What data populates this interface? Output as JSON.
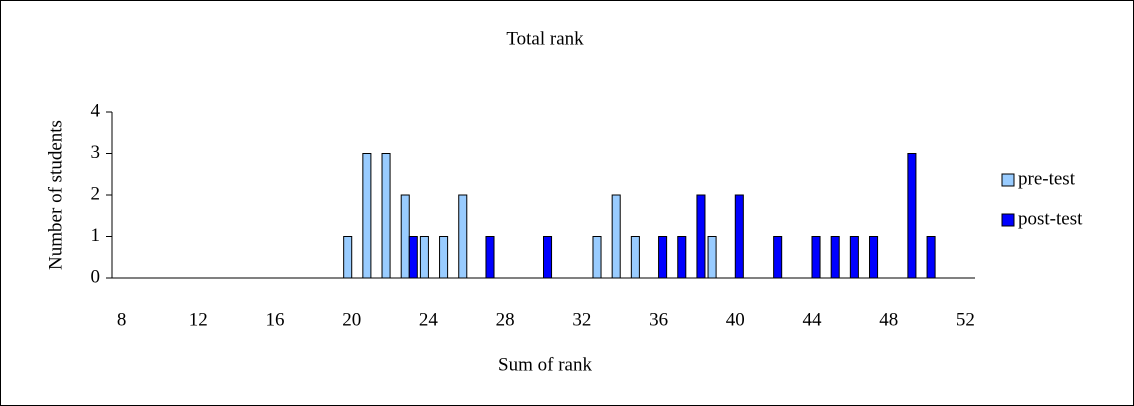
{
  "chart_data": {
    "type": "bar",
    "title": "Total rank",
    "xlabel": "Sum of rank",
    "ylabel": "Number of students",
    "xlim": [
      7.5,
      52.5
    ],
    "xticks": [
      8,
      12,
      16,
      20,
      24,
      28,
      32,
      36,
      40,
      44,
      48,
      52
    ],
    "ylim": [
      0,
      4
    ],
    "yticks": [
      0,
      1,
      2,
      3,
      4
    ],
    "grid": false,
    "legend": "right",
    "series": [
      {
        "name": "pre-test",
        "color": "#99ccff",
        "x": [
          20,
          21,
          22,
          23,
          24,
          25,
          26,
          33,
          34,
          35,
          39
        ],
        "values": [
          1,
          3,
          3,
          2,
          1,
          1,
          2,
          1,
          2,
          1,
          1
        ]
      },
      {
        "name": "post-test",
        "color": "#0000ff",
        "x": [
          23,
          27,
          30,
          36,
          37,
          38,
          40,
          42,
          44,
          45,
          46,
          47,
          49,
          50
        ],
        "values": [
          1,
          1,
          1,
          1,
          1,
          2,
          2,
          1,
          1,
          1,
          1,
          1,
          3,
          1
        ]
      }
    ]
  }
}
